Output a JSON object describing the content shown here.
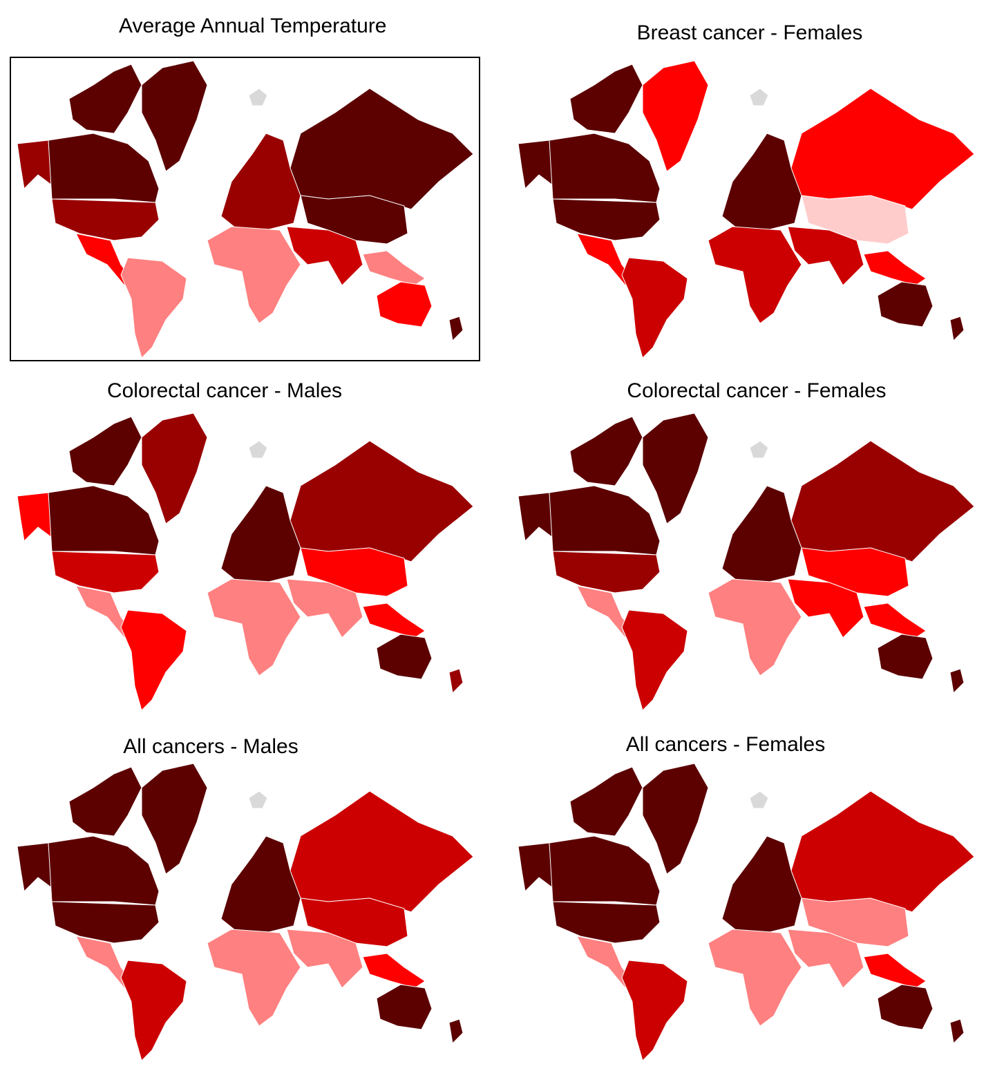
{
  "panels": [
    {
      "title": "Average Annual Temperature"
    },
    {
      "title": "Breast cancer - Females"
    },
    {
      "title": "Colorectal cancer - Males"
    },
    {
      "title": "Colorectal cancer - Females"
    },
    {
      "title": "All cancers - Males"
    },
    {
      "title": "All cancers - Females"
    }
  ]
}
